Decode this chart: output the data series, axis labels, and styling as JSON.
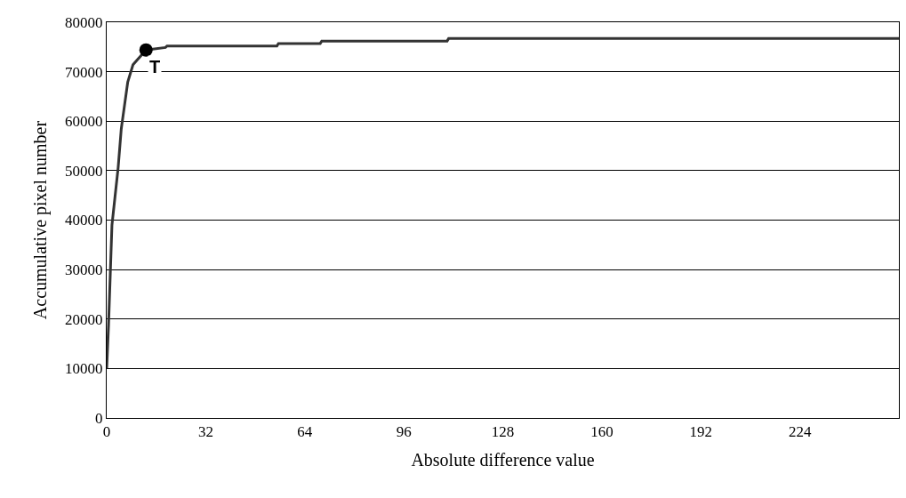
{
  "chart_data": {
    "type": "line",
    "xlabel": "Absolute difference value",
    "ylabel": "Accumulative pixel number",
    "series": [
      {
        "color": "#333333",
        "x": [
          0,
          0.6,
          1.7,
          3.7,
          4.7,
          6.8,
          8.5,
          12.7,
          19,
          19.5,
          55,
          55.5,
          69,
          69.5,
          110,
          110.5,
          256
        ],
        "values": [
          10000,
          18800,
          39000,
          50600,
          58400,
          67900,
          71400,
          74400,
          74900,
          75200,
          75200,
          75700,
          75700,
          76200,
          76200,
          76700,
          76700
        ]
      },
      {
        "type": "scatter",
        "color": "#000000",
        "marker": "circle",
        "x": [
          12.7
        ],
        "values": [
          74400
        ]
      }
    ],
    "annotations": [
      {
        "text": "T",
        "x": 12.7,
        "y": 74400
      }
    ],
    "xlim": [
      0,
      256
    ],
    "xticks": [
      0,
      32,
      64,
      96,
      128,
      160,
      192,
      224
    ],
    "ylim": [
      0,
      80000
    ],
    "yticks": [
      0,
      10000,
      20000,
      30000,
      40000,
      50000,
      60000,
      70000,
      80000
    ],
    "grid": "y",
    "legend": false
  }
}
